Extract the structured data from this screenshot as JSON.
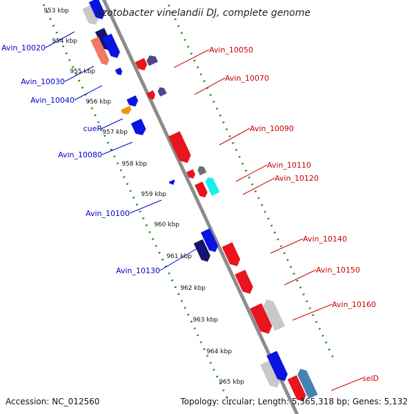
{
  "title": "Azotobacter vinelandii DJ, complete genome",
  "footer": {
    "accession": "Accession: NC_012560",
    "topology": "Topology: circular; Length: 5,365,318 bp; Genes: 5,132"
  },
  "ticks": [
    "953 kbp",
    "954 kbp",
    "955 kbp",
    "956 kbp",
    "957 kbp",
    "958 kbp",
    "959 kbp",
    "960 kbp",
    "961 kbp",
    "962 kbp",
    "963 kbp",
    "964 kbp",
    "965 kbp"
  ],
  "left_labels": [
    "Avin_10020",
    "Avin_10030",
    "Avin_10040",
    "cueR",
    "Avin_10080",
    "Avin_10100",
    "Avin_10130"
  ],
  "right_labels": [
    "Avin_10050",
    "Avin_10070",
    "Avin_10090",
    "Avin_10110",
    "Avin_10120",
    "Avin_10140",
    "Avin_10150",
    "Avin_10160",
    "selD"
  ],
  "colors": {
    "blue": "#0a14e0",
    "navy": "#14146e",
    "red": "#e8141e",
    "grey": "#c8c8c8",
    "darkgrey": "#6e6e6e",
    "purple": "#50468c",
    "orange": "#f0960a",
    "salmon": "#f07864",
    "cyan": "#14f0f0",
    "steelblue": "#4682b4",
    "backbone": "#8c8c8c",
    "dots": "#148c14",
    "left_label": "#0000c8",
    "right_label": "#c80000"
  }
}
